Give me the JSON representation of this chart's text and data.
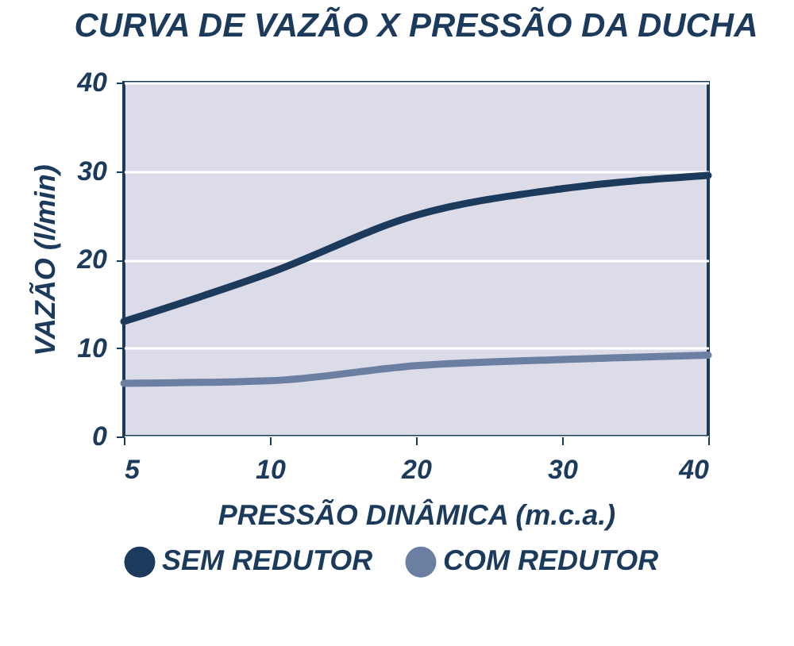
{
  "chart_data": {
    "type": "line",
    "title": "CURVA DE VAZÃO X PRESSÃO DA DUCHA",
    "xlabel": "PRESSÃO DINÂMICA (m.c.a.)",
    "ylabel": "VAZÃO (l/min)",
    "categories": [
      "5",
      "10",
      "20",
      "30",
      "40"
    ],
    "series": [
      {
        "name": "SEM REDUTOR",
        "color": "#1b3a5c",
        "values": [
          13,
          18.5,
          25,
          28,
          29.5
        ]
      },
      {
        "name": "COM REDUTOR",
        "color": "#6b7fa3",
        "values": [
          6,
          6.3,
          8,
          8.7,
          9.2
        ]
      }
    ],
    "ylim": [
      0,
      40
    ],
    "yticks": [
      0,
      10,
      20,
      30,
      40
    ],
    "grid": "y",
    "legend": "bottom",
    "marker": "none",
    "line_style": "solid"
  }
}
